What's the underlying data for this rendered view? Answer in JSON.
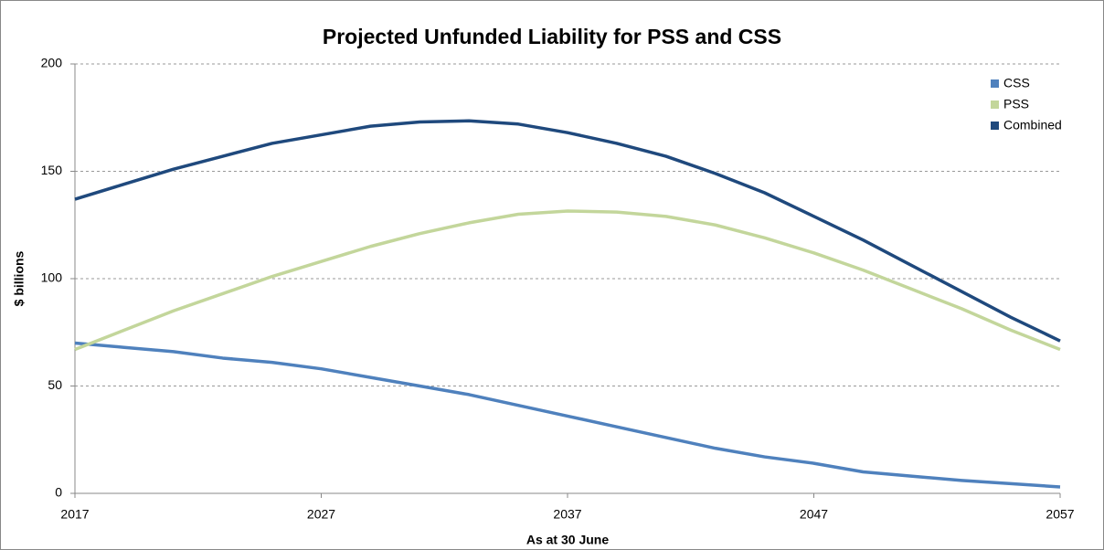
{
  "chart_data": {
    "type": "line",
    "title": "Projected Unfunded Liability for PSS and CSS",
    "x_label": "As at 30 June",
    "y_label": "$ billions",
    "x": [
      2017,
      2019,
      2021,
      2023,
      2025,
      2027,
      2029,
      2031,
      2033,
      2035,
      2037,
      2039,
      2041,
      2043,
      2045,
      2047,
      2049,
      2051,
      2053,
      2055,
      2057
    ],
    "series": [
      {
        "name": "CSS",
        "color": "#4f81bd",
        "values": [
          70,
          68,
          66,
          63,
          61,
          58,
          54,
          50,
          46,
          41,
          36,
          31,
          26,
          21,
          17,
          14,
          10,
          8,
          6,
          4.5,
          3
        ]
      },
      {
        "name": "PSS",
        "color": "#c3d69b",
        "values": [
          67,
          76,
          85,
          93,
          101,
          108,
          115,
          121,
          126,
          130,
          131.5,
          131,
          129,
          125,
          119,
          112,
          104,
          95,
          86,
          76,
          67
        ]
      },
      {
        "name": "Combined",
        "color": "#1f497d",
        "values": [
          137,
          144,
          151,
          157,
          163,
          167,
          171,
          173,
          173.5,
          172,
          168,
          163,
          157,
          149,
          140,
          129,
          118,
          106,
          94,
          82,
          71
        ]
      }
    ],
    "xlim": [
      2017,
      2057
    ],
    "xticks": [
      2017,
      2027,
      2037,
      2047,
      2057
    ],
    "ylim": [
      0,
      200
    ],
    "yticks": [
      0,
      50,
      100,
      150,
      200
    ],
    "grid": true,
    "legend": "top-right"
  }
}
